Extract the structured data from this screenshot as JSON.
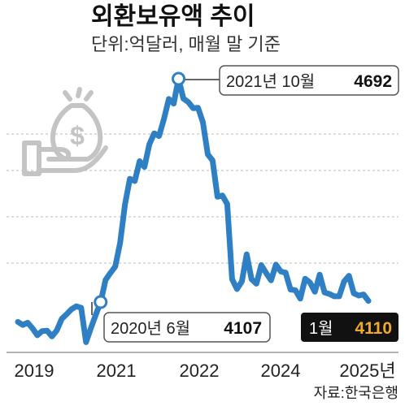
{
  "title": "외환보유액 추이",
  "subtitle": "단위:억달러, 매월 말 기준",
  "source": "자료:한국은행",
  "colors": {
    "line": "#2f7fc4",
    "grid": "#b8b8b8",
    "icon": "#c4c4c4",
    "last_bg": "#111111",
    "last_value": "#f0a92a"
  },
  "icon": "money-bag-hand-icon",
  "chart_data": {
    "type": "line",
    "x_tick_labels": [
      "2019",
      "2021",
      "2022",
      "2024",
      "2025년"
    ],
    "series": [
      {
        "x": [
          "2019-01",
          "2019-02",
          "2019-03",
          "2019-04",
          "2019-05",
          "2019-06",
          "2019-07",
          "2019-08",
          "2019-09",
          "2019-10",
          "2019-11",
          "2019-12",
          "2020-01",
          "2020-02",
          "2020-03",
          "2020-04",
          "2020-05",
          "2020-06",
          "2020-07",
          "2020-08",
          "2020-09",
          "2020-10",
          "2020-11",
          "2020-12",
          "2021-01",
          "2021-02",
          "2021-03",
          "2021-04",
          "2021-05",
          "2021-06",
          "2021-07",
          "2021-08",
          "2021-09",
          "2021-10",
          "2021-11",
          "2021-12",
          "2022-01",
          "2022-02",
          "2022-03",
          "2022-04",
          "2022-05",
          "2022-06",
          "2022-07",
          "2022-08",
          "2022-09",
          "2022-10",
          "2022-11",
          "2022-12",
          "2023-01",
          "2023-02",
          "2023-03",
          "2023-04",
          "2023-05",
          "2023-06",
          "2023-07",
          "2023-08",
          "2023-09",
          "2023-10",
          "2023-11",
          "2023-12",
          "2024-01",
          "2024-02",
          "2024-03",
          "2024-04",
          "2024-05",
          "2024-06",
          "2024-07",
          "2024-08",
          "2024-09",
          "2024-10",
          "2024-11",
          "2024-12",
          "2025-01"
        ],
        "values": [
          4055,
          4047,
          4053,
          4038,
          4020,
          4031,
          4032,
          4017,
          4033,
          4063,
          4075,
          4088,
          4096,
          4092,
          4002,
          4039,
          4074,
          4107,
          4165,
          4183,
          4200,
          4262,
          4363,
          4430,
          4424,
          4476,
          4461,
          4520,
          4549,
          4542,
          4587,
          4639,
          4627,
          4692,
          4640,
          4631,
          4615,
          4616,
          4578,
          4494,
          4478,
          4383,
          4386,
          4364,
          4167,
          4141,
          4161,
          4232,
          4167,
          4155,
          4204,
          4183,
          4164,
          4205,
          4187,
          4184,
          4140,
          4138,
          4116,
          4168,
          4158,
          4134,
          4179,
          4132,
          4128,
          4122,
          4122,
          4161,
          4176,
          4130,
          4124,
          4127,
          4110
        ]
      }
    ],
    "annotations": [
      {
        "label": "2021년 10월",
        "value": "4692"
      },
      {
        "label": "2020년 6월",
        "value": "4107"
      },
      {
        "label": "1월",
        "value": "4110"
      }
    ],
    "grid": "horizontal-dashed",
    "legend": "none"
  }
}
